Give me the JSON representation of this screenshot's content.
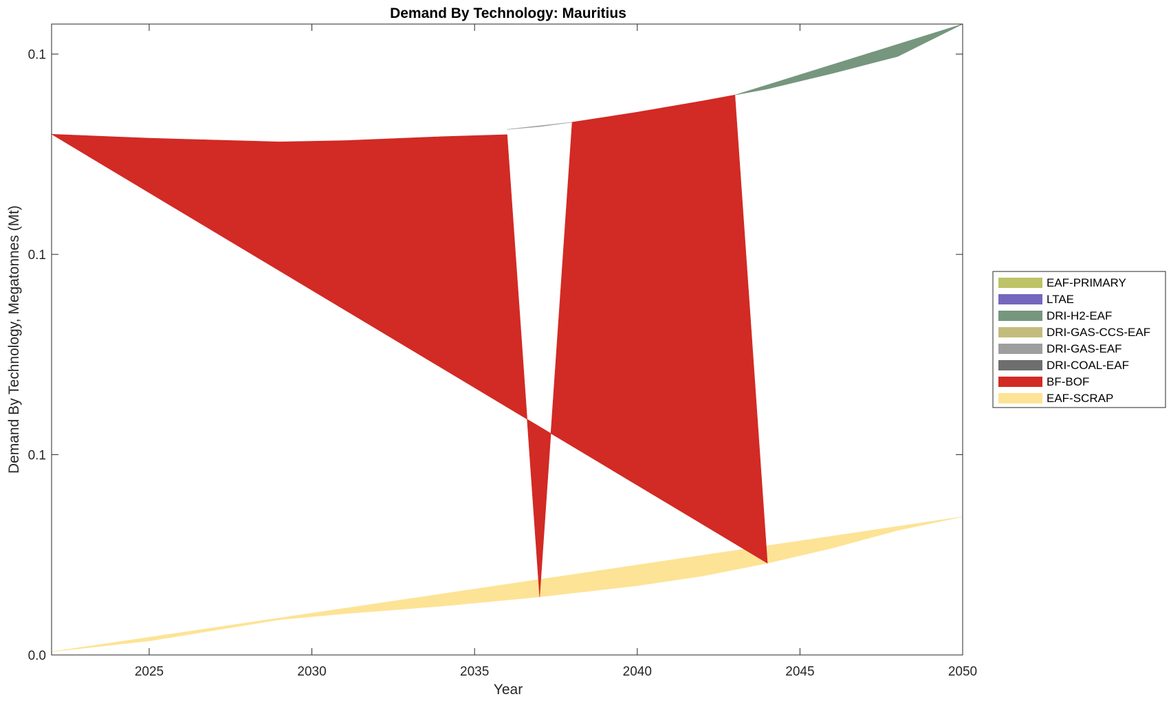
{
  "chart_data": {
    "type": "area",
    "title": "Demand By Technology: Mauritius",
    "xlabel": "Year",
    "ylabel": "Demand By Technology, Megatonnes (Mt)",
    "xlim": [
      2022,
      2050
    ],
    "ylim": [
      0,
      0.1575
    ],
    "x_ticks": [
      2025,
      2030,
      2035,
      2040,
      2045,
      2050
    ],
    "y_ticks": [
      {
        "value": 0,
        "label": "0.0"
      },
      {
        "value": 0.05,
        "label": "0.1"
      },
      {
        "value": 0.1,
        "label": "0.1"
      },
      {
        "value": 0.15,
        "label": "0.1"
      }
    ],
    "legend_position": "right",
    "series": [
      {
        "name": "EAF-SCRAP",
        "color": "#FDE395",
        "points": [
          [
            2022,
            0.0008
          ],
          [
            2025,
            0.0035
          ],
          [
            2029,
            0.0088
          ],
          [
            2031,
            0.0103
          ],
          [
            2034,
            0.0122
          ],
          [
            2037,
            0.0145
          ],
          [
            2040,
            0.0173
          ],
          [
            2042,
            0.0197
          ],
          [
            2044,
            0.0229
          ],
          [
            2046,
            0.0267
          ],
          [
            2048,
            0.0311
          ],
          [
            2050,
            0.0345
          ]
        ]
      },
      {
        "name": "BF-BOF",
        "color": "#D22A24",
        "points": [
          [
            2022,
            0.13
          ],
          [
            2025,
            0.129
          ],
          [
            2029,
            0.1281
          ],
          [
            2031,
            0.1284
          ],
          [
            2034,
            0.1294
          ],
          [
            2036,
            0.1299
          ],
          [
            2037,
            0.0145
          ],
          [
            2038,
            0.133
          ],
          [
            2040,
            0.1355
          ],
          [
            2042,
            0.1383
          ],
          [
            2043,
            0.1398
          ],
          [
            2044,
            0.0229
          ]
        ]
      },
      {
        "name": "DRI-GAS-EAF",
        "color": "#9E9E9E",
        "points": [
          [
            2036,
            0.1312
          ],
          [
            2037,
            0.1319
          ],
          [
            2038,
            0.133
          ]
        ]
      },
      {
        "name": "DRI-H2-EAF",
        "color": "#76967E",
        "points": [
          [
            2043,
            0.1398
          ],
          [
            2044,
            0.1413
          ],
          [
            2046,
            0.1452
          ],
          [
            2048,
            0.1494
          ],
          [
            2050,
            0.1575
          ]
        ]
      },
      {
        "name": "DRI-COAL-EAF",
        "color": "#6E6E6E",
        "points": []
      },
      {
        "name": "DRI-GAS-CCS-EAF",
        "color": "#C4BC7C",
        "points": []
      },
      {
        "name": "LTAE",
        "color": "#7567BE",
        "points": []
      },
      {
        "name": "EAF-PRIMARY",
        "color": "#BDC366",
        "points": []
      }
    ],
    "legend": [
      {
        "label": "EAF-PRIMARY",
        "color": "#BDC366"
      },
      {
        "label": "LTAE",
        "color": "#7567BE"
      },
      {
        "label": "DRI-H2-EAF",
        "color": "#76967E"
      },
      {
        "label": "DRI-GAS-CCS-EAF",
        "color": "#C4BC7C"
      },
      {
        "label": "DRI-GAS-EAF",
        "color": "#9E9E9E"
      },
      {
        "label": "DRI-COAL-EAF",
        "color": "#6E6E6E"
      },
      {
        "label": "BF-BOF",
        "color": "#D22A24"
      },
      {
        "label": "EAF-SCRAP",
        "color": "#FDE395"
      }
    ]
  }
}
